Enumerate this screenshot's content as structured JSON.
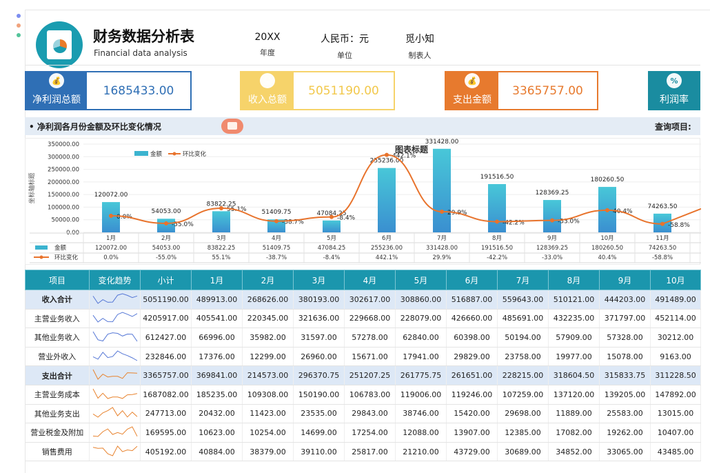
{
  "header": {
    "title_cn": "财务数据分析表",
    "title_en": "Financial data analysis",
    "year_value": "20XX",
    "year_label": "年度",
    "currency_value": "人民币：元",
    "currency_label": "单位",
    "author_value": "觅小知",
    "author_label": "制表人"
  },
  "kpis": [
    {
      "label": "净利润总额",
      "value": "1685433.00",
      "color": "#2f6fb5",
      "icon": "money-bag-icon"
    },
    {
      "label": "收入总额",
      "value": "5051190.00",
      "color": "#f6d36a",
      "icon": "cash-register-icon"
    },
    {
      "label": "支出金额",
      "value": "3365757.00",
      "color": "#e77a2e",
      "icon": "money-bag-icon"
    },
    {
      "label": "利润率",
      "value": "",
      "color": "#1a8ca0",
      "icon": "percent-icon"
    }
  ],
  "section": {
    "title": "• 净利润各月份金额及环比变化情况",
    "query_label": "查询项目:"
  },
  "chart_data": {
    "type": "bar",
    "title": "图表标题",
    "ylabel": "坐标轴标题",
    "ylim": [
      0,
      350000
    ],
    "yticks": [
      "350000.00",
      "300000.00",
      "250000.00",
      "200000.00",
      "150000.00",
      "100000.00",
      "50000.00",
      "0.00"
    ],
    "categories": [
      "1月",
      "2月",
      "3月",
      "4月",
      "5月",
      "6月",
      "7月",
      "8月",
      "9月",
      "10月",
      "11月"
    ],
    "series": [
      {
        "name": "金额",
        "type": "bar",
        "values": [
          120072.0,
          54053.0,
          83822.25,
          51409.75,
          47084.25,
          255236.0,
          331428.0,
          191516.5,
          128369.25,
          180260.5,
          74263.5
        ],
        "labels": [
          "120072.00",
          "54053.00",
          "83822.25",
          "51409.75",
          "47084.25",
          "255236.00",
          "331428.00",
          "191516.50",
          "128369.25",
          "180260.50",
          "74263.50"
        ]
      },
      {
        "name": "环比变化",
        "type": "line",
        "values": [
          0.0,
          -55.0,
          55.1,
          -38.7,
          -8.4,
          442.1,
          29.9,
          -42.2,
          -33.0,
          40.4,
          -58.8
        ],
        "labels": [
          "0.0%",
          "-55.0%",
          "55.1%",
          "-38.7%",
          "-8.4%",
          "442.1%",
          "29.9%",
          "-42.2%",
          "-33.0%",
          "40.4%",
          "-58.8%"
        ]
      }
    ],
    "legend_position": "top-left",
    "colors": {
      "bar": "#3bb3cf",
      "line": "#e8732c"
    }
  },
  "table": {
    "headers": [
      "项目",
      "变化趋势",
      "小计",
      "1月",
      "2月",
      "3月",
      "4月",
      "5月",
      "6月",
      "7月",
      "8月",
      "9月",
      "10月"
    ],
    "rows": [
      {
        "name": "收入合计",
        "sum": true,
        "trend": "blue",
        "cells": [
          "5051190.00",
          "489913.00",
          "268626.00",
          "380193.00",
          "302617.00",
          "308860.00",
          "516887.00",
          "559643.00",
          "510121.00",
          "444203.00",
          "491489.00"
        ]
      },
      {
        "name": "主营业务收入",
        "sum": false,
        "trend": "blue",
        "cells": [
          "4205917.00",
          "405541.00",
          "220345.00",
          "321636.00",
          "229668.00",
          "228079.00",
          "426660.00",
          "485691.00",
          "432235.00",
          "371797.00",
          "452114.00"
        ]
      },
      {
        "name": "其他业务收入",
        "sum": false,
        "trend": "blue",
        "cells": [
          "612427.00",
          "66996.00",
          "35982.00",
          "31597.00",
          "57278.00",
          "62840.00",
          "60398.00",
          "50194.00",
          "57909.00",
          "57328.00",
          "30212.00"
        ]
      },
      {
        "name": "营业外收入",
        "sum": false,
        "trend": "blue",
        "cells": [
          "232846.00",
          "17376.00",
          "12299.00",
          "26960.00",
          "15671.00",
          "17941.00",
          "29829.00",
          "23758.00",
          "19977.00",
          "15078.00",
          "9163.00"
        ]
      },
      {
        "name": "支出合计",
        "sum": true,
        "trend": "orange",
        "cells": [
          "3365757.00",
          "369841.00",
          "214573.00",
          "296370.75",
          "251207.25",
          "261775.75",
          "261651.00",
          "228215.00",
          "318604.50",
          "315833.75",
          "311228.50"
        ]
      },
      {
        "name": "主营业务成本",
        "sum": false,
        "trend": "orange",
        "cells": [
          "1687082.00",
          "185235.00",
          "109308.00",
          "150190.00",
          "106783.00",
          "119006.00",
          "119246.00",
          "107259.00",
          "137120.00",
          "139205.00",
          "147892.00"
        ]
      },
      {
        "name": "其他业务支出",
        "sum": false,
        "trend": "orange",
        "cells": [
          "247713.00",
          "20432.00",
          "11423.00",
          "23535.00",
          "29843.00",
          "38746.00",
          "15420.00",
          "29698.00",
          "11889.00",
          "25583.00",
          "13015.00"
        ]
      },
      {
        "name": "营业税金及附加",
        "sum": false,
        "trend": "orange",
        "cells": [
          "169595.00",
          "10623.00",
          "10254.00",
          "14699.00",
          "17254.00",
          "12088.00",
          "13907.00",
          "12385.00",
          "17082.00",
          "19262.00",
          "10407.00"
        ]
      },
      {
        "name": "销售费用",
        "sum": false,
        "trend": "orange",
        "cells": [
          "405192.00",
          "40884.00",
          "38379.00",
          "39110.00",
          "25817.00",
          "21210.00",
          "43729.00",
          "30689.00",
          "34852.00",
          "33065.00",
          "43485.00"
        ]
      }
    ]
  }
}
